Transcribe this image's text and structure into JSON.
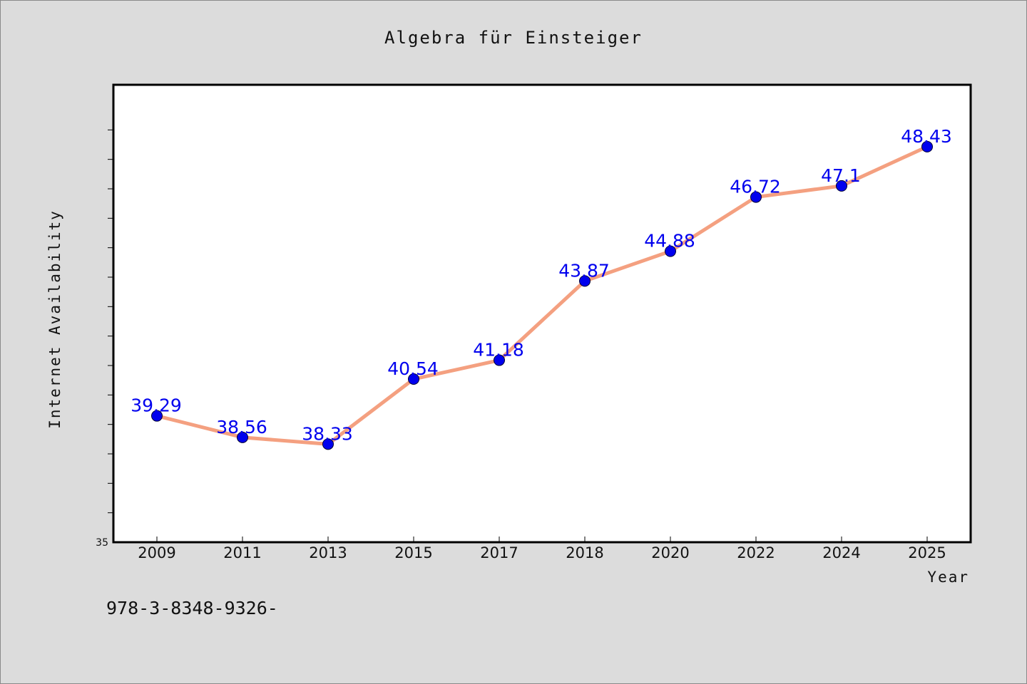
{
  "chart_data": {
    "type": "line",
    "title": "Algebra für Einsteiger",
    "xlabel": "Year",
    "ylabel": "Internet Availability",
    "categories": [
      "2009",
      "2011",
      "2013",
      "2015",
      "2017",
      "2018",
      "2020",
      "2022",
      "2024",
      "2025"
    ],
    "values": [
      39.29,
      38.56,
      38.33,
      40.54,
      41.18,
      43.87,
      44.88,
      46.72,
      47.1,
      48.43
    ],
    "data_labels": [
      "39.29",
      "38.56",
      "38.33",
      "40.54",
      "41.18",
      "43.87",
      "44.88",
      "46.72",
      "47.1",
      "48.43"
    ],
    "ylim": [
      35,
      50
    ],
    "y_tick_label": "35",
    "grid": false,
    "line_color": "#f4a080",
    "marker_color": "#0000ee",
    "plot_background": "#ffffff",
    "page_background": "#dcdcdc"
  },
  "footnote": "978-3-8348-9326-"
}
